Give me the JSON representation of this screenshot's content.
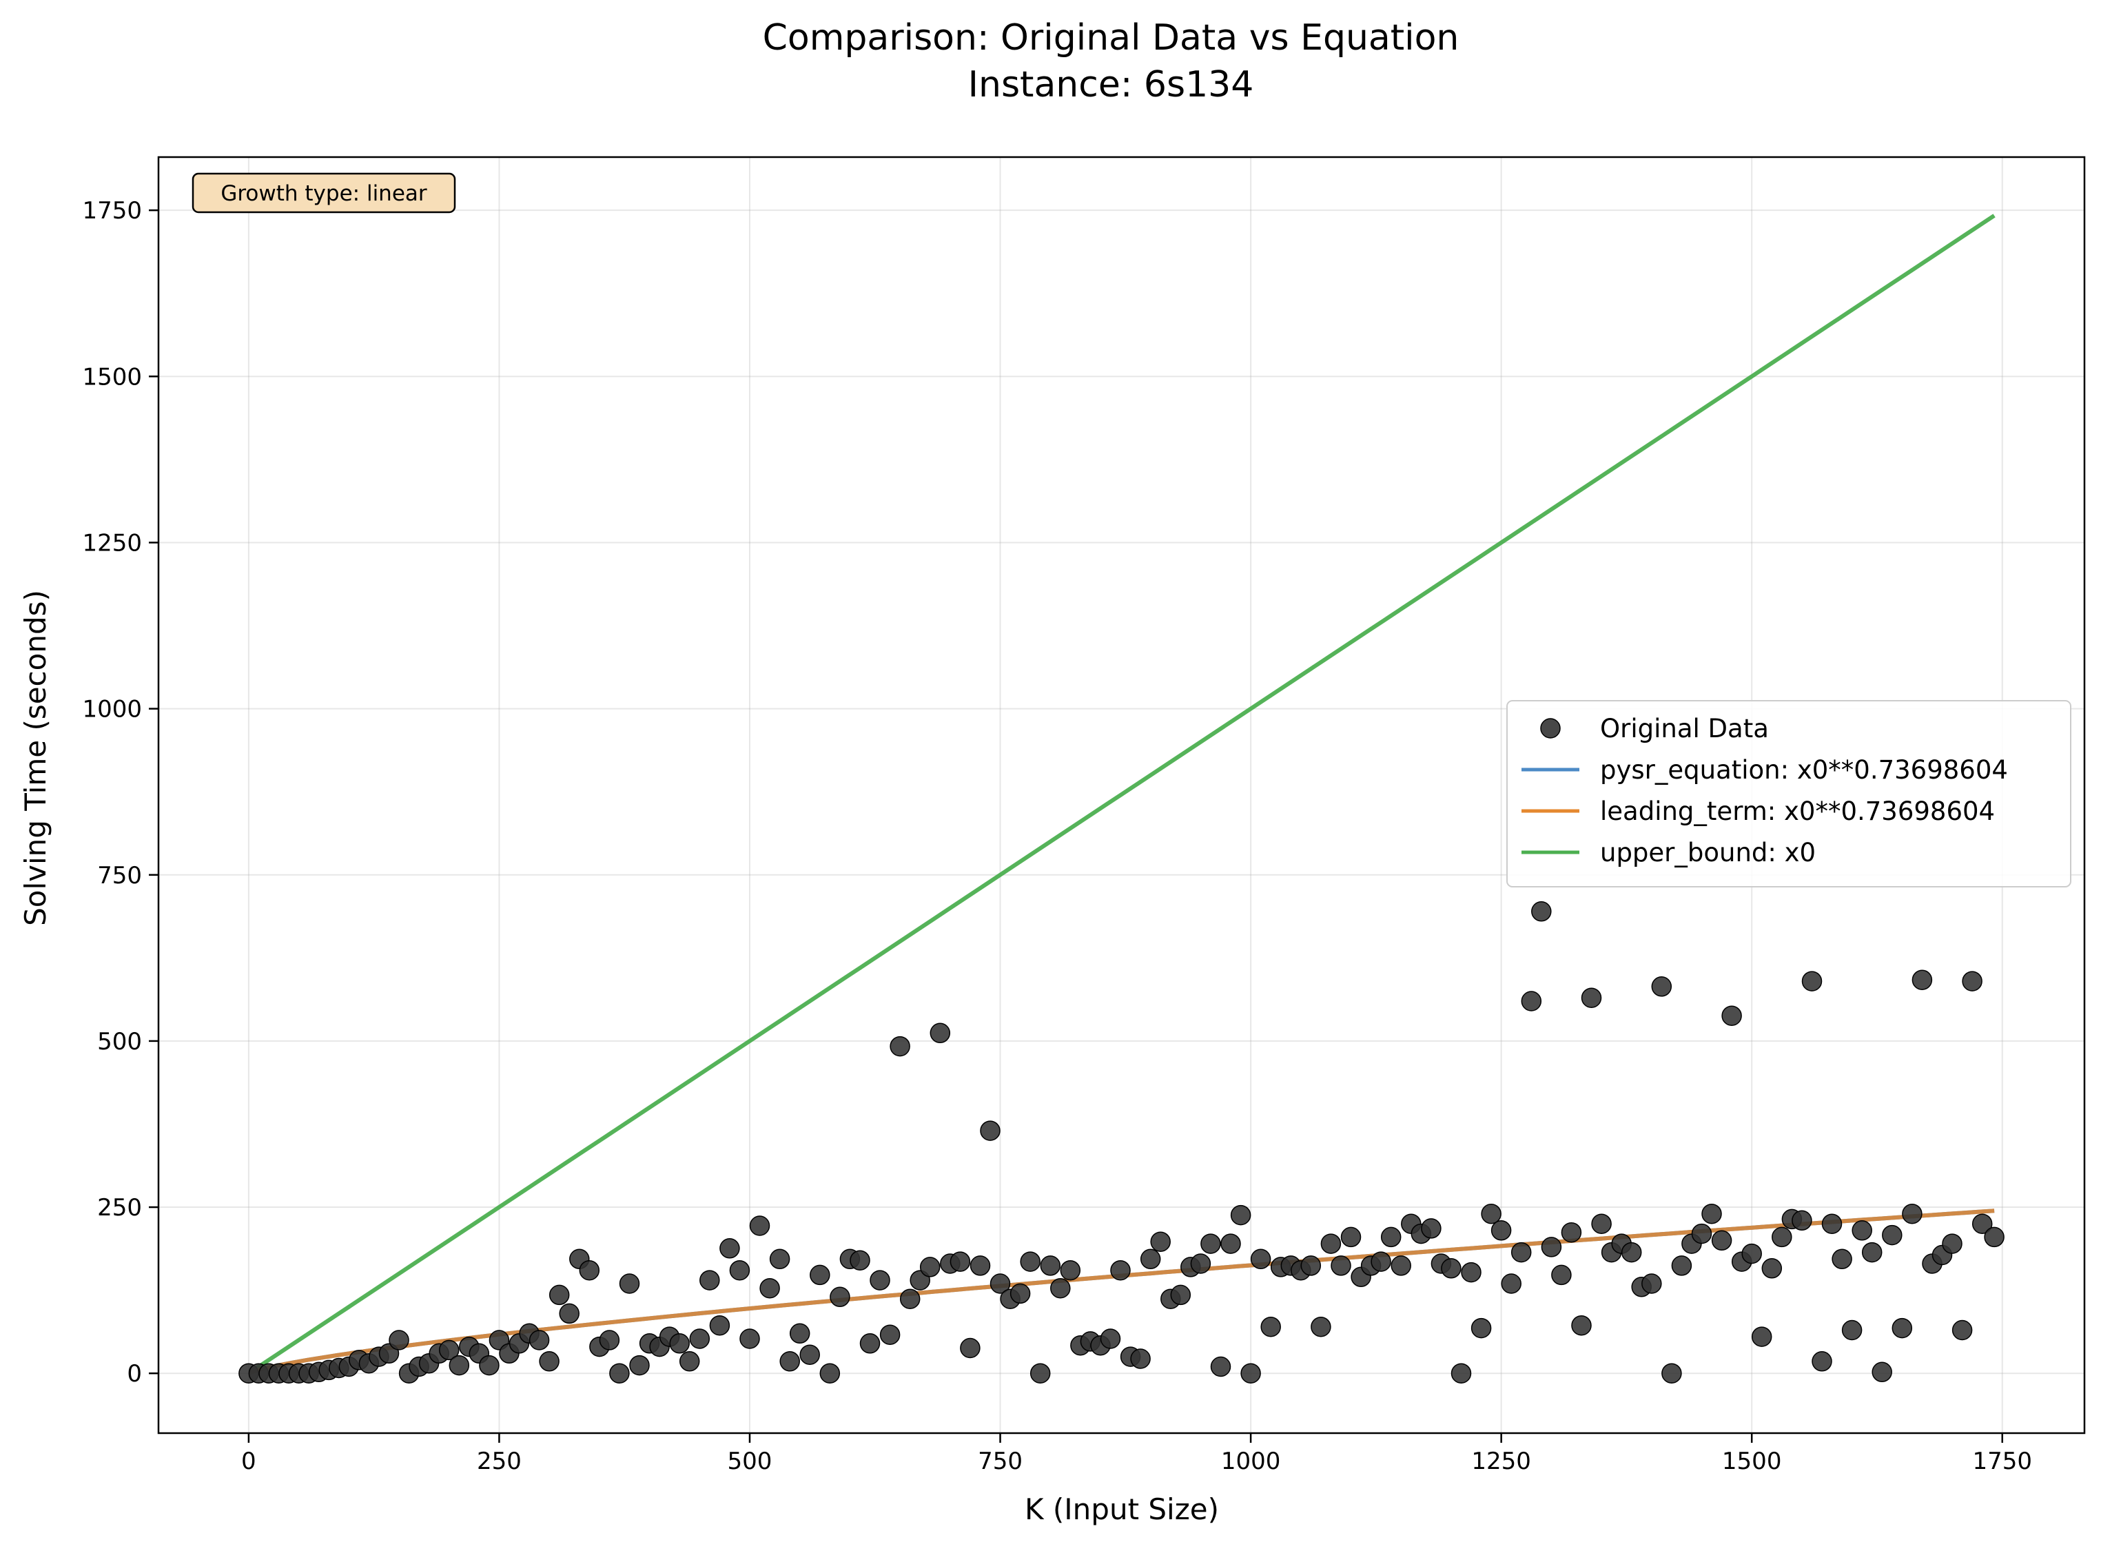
{
  "chart_data": {
    "type": "scatter",
    "title": "Comparison: Original Data vs Equation",
    "subtitle": "Instance: 6s134",
    "xlabel": "K (Input Size)",
    "ylabel": "Solving Time (seconds)",
    "xlim": [
      -90,
      1832
    ],
    "ylim": [
      -90,
      1830
    ],
    "x_ticks": [
      0,
      250,
      500,
      750,
      1000,
      1250,
      1500,
      1750
    ],
    "y_ticks": [
      0,
      250,
      500,
      750,
      1000,
      1250,
      1500,
      1750
    ],
    "grid": true,
    "legend_position": "center-right",
    "annotation": "Growth type: linear",
    "colors": {
      "points": "#333333",
      "pysr": "#4c8ac6",
      "leading": "#e5882f",
      "upper": "#4caf50",
      "annotation_bg": "#f7deb8"
    },
    "series": [
      {
        "name": "Original Data",
        "kind": "scatter",
        "points": [
          [
            0,
            0
          ],
          [
            10,
            0
          ],
          [
            20,
            0
          ],
          [
            30,
            0
          ],
          [
            40,
            0
          ],
          [
            50,
            0
          ],
          [
            60,
            0
          ],
          [
            70,
            2
          ],
          [
            80,
            5
          ],
          [
            90,
            8
          ],
          [
            100,
            10
          ],
          [
            110,
            20
          ],
          [
            120,
            15
          ],
          [
            130,
            25
          ],
          [
            140,
            30
          ],
          [
            150,
            50
          ],
          [
            160,
            0
          ],
          [
            170,
            10
          ],
          [
            180,
            15
          ],
          [
            190,
            30
          ],
          [
            200,
            35
          ],
          [
            210,
            12
          ],
          [
            220,
            40
          ],
          [
            230,
            30
          ],
          [
            240,
            12
          ],
          [
            250,
            50
          ],
          [
            260,
            30
          ],
          [
            270,
            45
          ],
          [
            280,
            60
          ],
          [
            290,
            50
          ],
          [
            300,
            18
          ],
          [
            310,
            118
          ],
          [
            320,
            90
          ],
          [
            330,
            172
          ],
          [
            340,
            155
          ],
          [
            350,
            40
          ],
          [
            360,
            50
          ],
          [
            370,
            0
          ],
          [
            380,
            135
          ],
          [
            390,
            12
          ],
          [
            400,
            45
          ],
          [
            410,
            40
          ],
          [
            420,
            55
          ],
          [
            430,
            45
          ],
          [
            440,
            18
          ],
          [
            450,
            52
          ],
          [
            460,
            140
          ],
          [
            470,
            72
          ],
          [
            480,
            188
          ],
          [
            490,
            155
          ],
          [
            500,
            52
          ],
          [
            510,
            222
          ],
          [
            520,
            128
          ],
          [
            530,
            172
          ],
          [
            540,
            18
          ],
          [
            550,
            60
          ],
          [
            560,
            28
          ],
          [
            570,
            148
          ],
          [
            580,
            0
          ],
          [
            590,
            115
          ],
          [
            600,
            172
          ],
          [
            610,
            170
          ],
          [
            620,
            45
          ],
          [
            630,
            140
          ],
          [
            640,
            58
          ],
          [
            650,
            492
          ],
          [
            660,
            112
          ],
          [
            670,
            140
          ],
          [
            680,
            160
          ],
          [
            690,
            512
          ],
          [
            700,
            165
          ],
          [
            710,
            168
          ],
          [
            720,
            38
          ],
          [
            730,
            162
          ],
          [
            740,
            365
          ],
          [
            750,
            135
          ],
          [
            760,
            112
          ],
          [
            770,
            120
          ],
          [
            780,
            168
          ],
          [
            790,
            0
          ],
          [
            800,
            162
          ],
          [
            810,
            128
          ],
          [
            820,
            155
          ],
          [
            830,
            42
          ],
          [
            840,
            48
          ],
          [
            850,
            42
          ],
          [
            860,
            52
          ],
          [
            870,
            155
          ],
          [
            880,
            25
          ],
          [
            890,
            22
          ],
          [
            900,
            172
          ],
          [
            910,
            198
          ],
          [
            920,
            112
          ],
          [
            930,
            118
          ],
          [
            940,
            160
          ],
          [
            950,
            165
          ],
          [
            960,
            195
          ],
          [
            970,
            10
          ],
          [
            980,
            195
          ],
          [
            990,
            238
          ],
          [
            1000,
            0
          ],
          [
            1010,
            172
          ],
          [
            1020,
            70
          ],
          [
            1030,
            160
          ],
          [
            1040,
            162
          ],
          [
            1050,
            155
          ],
          [
            1060,
            162
          ],
          [
            1070,
            70
          ],
          [
            1080,
            195
          ],
          [
            1090,
            162
          ],
          [
            1100,
            205
          ],
          [
            1110,
            145
          ],
          [
            1120,
            162
          ],
          [
            1130,
            168
          ],
          [
            1140,
            205
          ],
          [
            1150,
            162
          ],
          [
            1160,
            225
          ],
          [
            1170,
            210
          ],
          [
            1180,
            218
          ],
          [
            1190,
            165
          ],
          [
            1200,
            158
          ],
          [
            1210,
            0
          ],
          [
            1220,
            152
          ],
          [
            1230,
            68
          ],
          [
            1240,
            240
          ],
          [
            1250,
            215
          ],
          [
            1260,
            135
          ],
          [
            1270,
            182
          ],
          [
            1280,
            560
          ],
          [
            1290,
            695
          ],
          [
            1300,
            190
          ],
          [
            1310,
            148
          ],
          [
            1320,
            212
          ],
          [
            1330,
            72
          ],
          [
            1340,
            565
          ],
          [
            1350,
            225
          ],
          [
            1360,
            182
          ],
          [
            1370,
            195
          ],
          [
            1380,
            182
          ],
          [
            1390,
            130
          ],
          [
            1400,
            135
          ],
          [
            1410,
            582
          ],
          [
            1420,
            0
          ],
          [
            1430,
            162
          ],
          [
            1440,
            195
          ],
          [
            1450,
            210
          ],
          [
            1460,
            240
          ],
          [
            1470,
            200
          ],
          [
            1480,
            538
          ],
          [
            1490,
            168
          ],
          [
            1500,
            180
          ],
          [
            1510,
            55
          ],
          [
            1520,
            158
          ],
          [
            1530,
            205
          ],
          [
            1540,
            232
          ],
          [
            1550,
            230
          ],
          [
            1560,
            590
          ],
          [
            1570,
            18
          ],
          [
            1580,
            225
          ],
          [
            1590,
            172
          ],
          [
            1600,
            65
          ],
          [
            1610,
            215
          ],
          [
            1620,
            182
          ],
          [
            1630,
            2
          ],
          [
            1640,
            208
          ],
          [
            1650,
            68
          ],
          [
            1660,
            240
          ],
          [
            1670,
            592
          ],
          [
            1680,
            165
          ],
          [
            1690,
            178
          ],
          [
            1700,
            195
          ],
          [
            1710,
            65
          ],
          [
            1720,
            590
          ],
          [
            1730,
            225
          ],
          [
            1742,
            205
          ]
        ]
      },
      {
        "name": "pysr_equation: x0**0.73698604",
        "kind": "power-line",
        "exponent": 0.73698604,
        "x_range": [
          1,
          1742
        ]
      },
      {
        "name": "leading_term: x0**0.73698604",
        "kind": "power-line",
        "exponent": 0.73698604,
        "x_range": [
          1,
          1742
        ]
      },
      {
        "name": "upper_bound: x0",
        "kind": "power-line",
        "exponent": 1,
        "x_range": [
          1,
          1742
        ]
      }
    ]
  }
}
